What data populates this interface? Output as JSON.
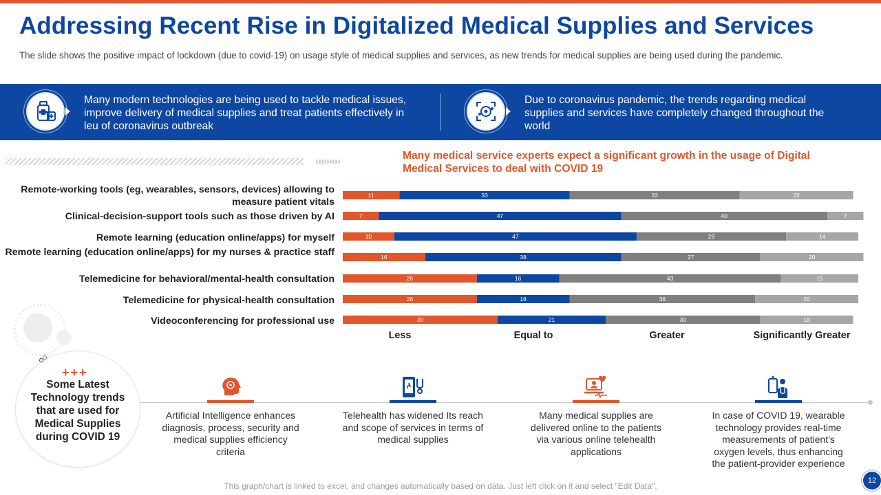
{
  "title": "Addressing Recent Rise in Digitalized Medical Supplies and Services",
  "subtitle": "The slide shows the positive impact of lockdown (due to covid-19) on usage style of medical supplies and services, as new trends for medical supplies are being used during the pandemic.",
  "band": {
    "left_text": "Many modern technologies are being used to tackle medical issues, improve delivery of medical supplies and treat patients effectively in leu of coronavirus outbreak",
    "right_text": "Due to coronavirus pandemic, the trends regarding medical supplies and services have completely changed throughout the world",
    "left_icon": "medical-supplies-icon",
    "right_icon": "virus-scan-icon"
  },
  "callout": "Many medical service experts expect a significant growth in the usage of Digital Medical Services to deal with COVID 19",
  "chart_data": {
    "type": "bar",
    "orientation": "horizontal",
    "stacked": true,
    "categories": [
      "Remote-working tools (eg, wearables, sensors, devices) allowing to measure patient vitals",
      "Clinical-decision-support tools such as those driven by AI",
      "Remote learning (education online/apps) for myself",
      "Remote learning (education online/apps) for my  nurses & practice staff",
      "Telemedicine for behavioral/mental-health consultation",
      "Telemedicine for physical-health consultation",
      "Videoconferencing for professional use"
    ],
    "series": [
      {
        "name": "Less",
        "color": "#e2562b",
        "values": [
          11,
          7,
          10,
          16,
          26,
          26,
          30
        ]
      },
      {
        "name": "Equal to",
        "color": "#0d47a1",
        "values": [
          33,
          47,
          47,
          38,
          16,
          18,
          21
        ]
      },
      {
        "name": "Greater",
        "color": "#7f7f7f",
        "values": [
          33,
          40,
          29,
          27,
          43,
          36,
          30
        ]
      },
      {
        "name": "Significantly Greater",
        "color": "#a6a6a6",
        "values": [
          22,
          7,
          14,
          20,
          15,
          20,
          18
        ]
      }
    ],
    "xlim": [
      0,
      100
    ],
    "legend": "bottom",
    "grid": false
  },
  "row_labels": [
    "Remote-working tools (eg, wearables, sensors, devices) allowing to measure patient vitals",
    "Clinical-decision-support tools such as those driven by AI",
    "Remote learning (education online/apps) for myself",
    "Remote learning (education online/apps) for my  nurses & practice staff",
    "Telemedicine for behavioral/mental-health consultation",
    "Telemedicine for physical-health consultation",
    "Videoconferencing for professional use"
  ],
  "categories_legend": [
    "Less",
    "Equal to",
    "Greater",
    "Significantly Greater"
  ],
  "badge": {
    "pluses": "+++",
    "text": "Some Latest Technology trends that are used for Medical Supplies during COVID 19"
  },
  "trends": [
    {
      "icon": "brain-head-icon",
      "text": "Artificial Intelligence enhances diagnosis, process, security and medical supplies efficiency criteria",
      "color": "#e2562b"
    },
    {
      "icon": "phone-stethoscope-icon",
      "text": "Telehealth has widened Its reach and scope of services in terms of medical supplies",
      "color": "#0d47a1"
    },
    {
      "icon": "laptop-heartbeat-icon",
      "text": "Many medical supplies are delivered online to the patients via various online telehealth applications",
      "color": "#e2562b"
    },
    {
      "icon": "wearable-doctor-icon",
      "text": "In case of COVID 19, wearable technology provides real-time measurements of patient's oxygen levels, thus enhancing the patient-provider experience",
      "color": "#0d47a1"
    }
  ],
  "footer": "This graph/chart is linked to excel, and changes automatically based on data. Just left click on it and select \"Edit Data\".",
  "page_number": "12",
  "colors": {
    "accent": "#e2562b",
    "brand": "#0d47a1"
  }
}
